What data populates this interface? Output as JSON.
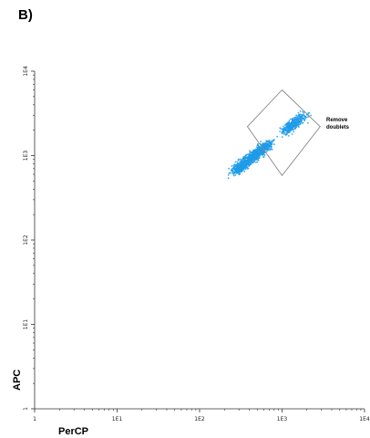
{
  "panel_label": "B)",
  "chart_data": {
    "type": "scatter",
    "title": "",
    "xlabel": "PerCP",
    "ylabel": "APC",
    "xscale": "log",
    "yscale": "log",
    "xlim": [
      1,
      10000
    ],
    "ylim": [
      1,
      10000
    ],
    "x_ticks": [
      {
        "value": 1,
        "label": "1"
      },
      {
        "value": 10,
        "label": "1E1"
      },
      {
        "value": 100,
        "label": "1E2"
      },
      {
        "value": 1000,
        "label": "1E3"
      },
      {
        "value": 10000,
        "label": "1E4"
      }
    ],
    "y_ticks": [
      {
        "value": 1,
        "label": "1"
      },
      {
        "value": 10,
        "label": "1E1"
      },
      {
        "value": 100,
        "label": "1E2"
      },
      {
        "value": 1000,
        "label": "1E3"
      },
      {
        "value": 10000,
        "label": "1E4"
      }
    ],
    "grid": false,
    "point_color": "#1e9be8",
    "gate_color": "#888888",
    "population": {
      "x_range": [
        190,
        1900
      ],
      "y_range": [
        500,
        3000
      ],
      "n_points": 1400,
      "description_of_shape": "diagonal elongated cluster"
    },
    "gate": {
      "label": "Remove doublets",
      "vertices": [
        [
          1000,
          6000
        ],
        [
          2900,
          2200
        ],
        [
          1000,
          580
        ],
        [
          380,
          2200
        ]
      ]
    }
  }
}
